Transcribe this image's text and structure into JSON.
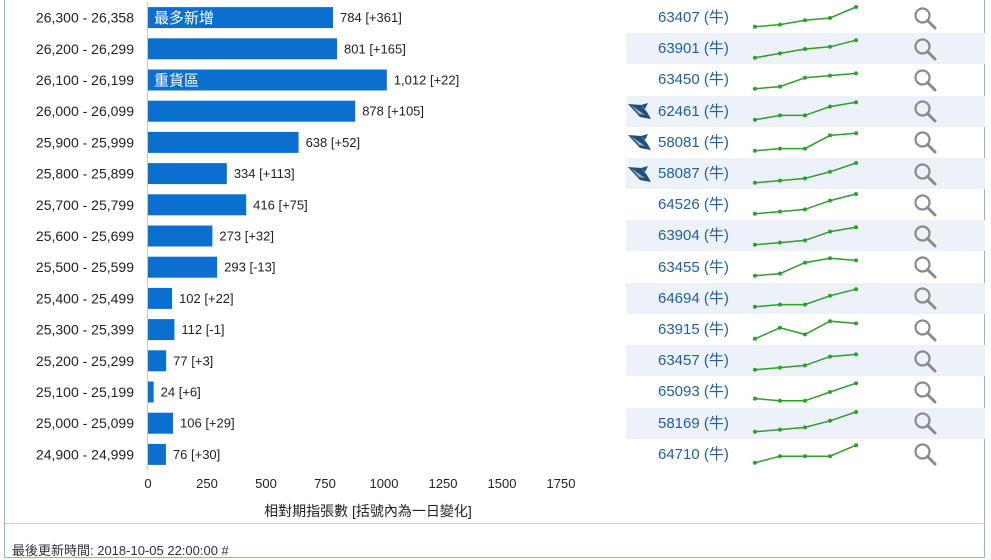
{
  "chart_data": {
    "type": "bar",
    "orientation": "horizontal",
    "categories": [
      "26,300 - 26,358",
      "26,200 - 26,299",
      "26,100 - 26,199",
      "26,000 - 26,099",
      "25,900 - 25,999",
      "25,800 - 25,899",
      "25,700 - 25,799",
      "25,600 - 25,699",
      "25,500 - 25,599",
      "25,400 - 25,499",
      "25,300 - 25,399",
      "25,200 - 25,299",
      "25,100 - 25,199",
      "25,000 - 25,099",
      "24,900 - 24,999"
    ],
    "values": [
      784,
      801,
      1012,
      878,
      638,
      334,
      416,
      273,
      293,
      102,
      112,
      77,
      24,
      106,
      76
    ],
    "value_labels": [
      "784 [+361]",
      "801 [+165]",
      "1,012 [+22]",
      "878 [+105]",
      "638 [+52]",
      "334 [+113]",
      "416 [+75]",
      "273 [+32]",
      "293 [-13]",
      "102 [+22]",
      "112 [-1]",
      "77 [+3]",
      "24 [+6]",
      "106 [+29]",
      "76 [+30]"
    ],
    "bar_annotations": [
      "最多新增",
      "",
      "重貨區",
      "",
      "",
      "",
      "",
      "",
      "",
      "",
      "",
      "",
      "",
      "",
      ""
    ],
    "xlabel": "相對期指張數 [括號內為一日變化]",
    "xticks": [
      "0",
      "250",
      "500",
      "750",
      "1000",
      "1250",
      "1500",
      "1750"
    ],
    "xlim": [
      0,
      1750
    ],
    "bar_color": "#0a6fcf"
  },
  "warrants": {
    "codes": [
      "63407 (牛)",
      "63901 (牛)",
      "63450 (牛)",
      "62461 (牛)",
      "58081 (牛)",
      "58087 (牛)",
      "64526 (牛)",
      "63904 (牛)",
      "63455 (牛)",
      "64694 (牛)",
      "63915 (牛)",
      "63457 (牛)",
      "65093 (牛)",
      "58169 (牛)",
      "64710 (牛)"
    ],
    "whale_flags": [
      false,
      false,
      false,
      true,
      true,
      true,
      false,
      false,
      false,
      false,
      false,
      false,
      false,
      false,
      false
    ],
    "sparklines": [
      [
        1,
        2,
        4,
        5,
        10
      ],
      [
        1,
        3,
        5,
        6,
        9
      ],
      [
        1,
        2,
        6,
        7,
        8
      ],
      [
        1,
        3,
        3,
        7,
        9
      ],
      [
        1,
        2,
        2,
        8,
        9
      ],
      [
        1,
        2,
        3,
        6,
        10
      ],
      [
        1,
        2,
        3,
        7,
        10
      ],
      [
        1,
        2,
        3,
        7,
        9
      ],
      [
        1,
        2,
        7,
        9,
        8
      ],
      [
        1,
        2,
        2,
        6,
        9
      ],
      [
        1,
        6,
        3,
        9,
        8
      ],
      [
        1,
        2,
        3,
        7,
        8
      ],
      [
        2,
        1,
        1,
        5,
        9
      ],
      [
        1,
        2,
        3,
        6,
        10
      ],
      [
        1,
        4,
        4,
        4,
        9
      ]
    ],
    "spark_color": "#2e9e2e",
    "search_icon": "magnifier-icon",
    "whale_icon": "whale-icon"
  },
  "footer": {
    "updated": "最後更新時間: 2018-10-05 22:00:00 #"
  }
}
